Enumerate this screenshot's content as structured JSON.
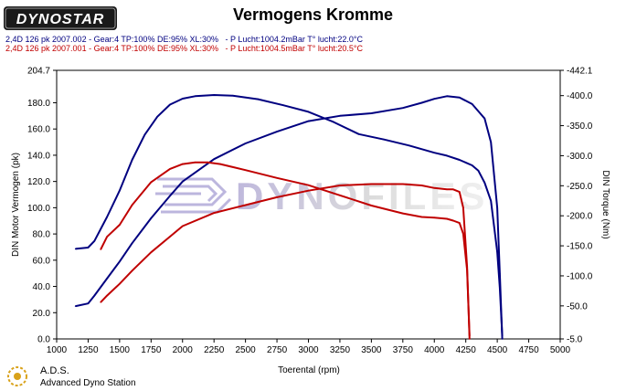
{
  "header": {
    "logo_text": "DYNOSTAR",
    "title": "Vermogens Kromme",
    "runs": [
      {
        "label": "2,4D 126 pk 2007.002 - Gear:4 TP:100% DE:95% XL:30%",
        "conditions": "- P Lucht:1004.2mBar T° lucht:22.0°C",
        "color": "#000080"
      },
      {
        "label": "2,4D 126 pk 2007.001 - Gear:4 TP:100% DE:95% XL:30%",
        "conditions": "- P Lucht:1004.5mBar T° lucht:20.5°C",
        "color": "#c00000"
      }
    ]
  },
  "watermark": "DYNOFILES",
  "footer": {
    "name": "A.D.S.",
    "subtitle": "Advanced Dyno Station"
  },
  "chart_data": {
    "type": "line",
    "xlabel": "Toerental (rpm)",
    "ylabel_left": "DIN Motor Vermogen (pk)",
    "ylabel_right": "DIN Torque (Nm)",
    "xlim": [
      1000,
      5000
    ],
    "ylim_left": [
      0,
      204.7
    ],
    "ylim_right": [
      -5,
      442.1
    ],
    "x_ticks": [
      "1000",
      "1250",
      "1500",
      "1750",
      "2000",
      "2250",
      "2500",
      "2750",
      "3000",
      "3250",
      "3500",
      "3750",
      "4000",
      "4250",
      "4500",
      "4750",
      "5000"
    ],
    "y_left_ticks": [
      "0.0",
      "20.0",
      "40.0",
      "60.0",
      "80.0",
      "100.0",
      "120.0",
      "140.0",
      "160.0",
      "180.0",
      "204.7"
    ],
    "y_right_ticks": [
      "-5.0",
      "-50.0",
      "-100.0",
      "-150.0",
      "-200.0",
      "-250.0",
      "-300.0",
      "-350.0",
      "-400.0",
      "-442.1"
    ],
    "grid": false,
    "series": [
      {
        "name": "2,4D 126 pk 2007.002",
        "quantity": "power",
        "axis": "left",
        "color": "#000080",
        "x": [
          1150,
          1250,
          1300,
          1400,
          1500,
          1600,
          1750,
          1900,
          2000,
          2250,
          2500,
          2750,
          3000,
          3250,
          3500,
          3750,
          3900,
          4000,
          4100,
          4200,
          4300,
          4400,
          4450,
          4500,
          4520,
          4540
        ],
        "y": [
          25,
          27,
          33,
          46,
          59,
          73,
          92,
          109,
          120,
          137,
          149,
          158,
          166,
          170,
          172,
          176,
          180,
          183,
          185,
          184,
          179,
          168,
          150,
          100,
          50,
          0
        ]
      },
      {
        "name": "2,4D 126 pk 2007.002",
        "quantity": "torque",
        "axis": "right",
        "color": "#000080",
        "x": [
          1150,
          1250,
          1300,
          1400,
          1500,
          1600,
          1700,
          1800,
          1900,
          2000,
          2100,
          2250,
          2400,
          2600,
          2800,
          3000,
          3200,
          3400,
          3600,
          3800,
          4000,
          4100,
          4200,
          4300,
          4350,
          4400,
          4450,
          4500,
          4520,
          4540
        ],
        "y": [
          145,
          147,
          158,
          198,
          242,
          293,
          335,
          365,
          385,
          395,
          399,
          401,
          400,
          394,
          384,
          373,
          356,
          336,
          327,
          317,
          305,
          300,
          293,
          284,
          275,
          255,
          225,
          140,
          80,
          0
        ]
      },
      {
        "name": "2,4D 126 pk 2007.001",
        "quantity": "power",
        "axis": "left",
        "color": "#c00000",
        "x": [
          1350,
          1400,
          1500,
          1600,
          1750,
          1900,
          2000,
          2250,
          2500,
          2750,
          3000,
          3250,
          3500,
          3750,
          3900,
          4000,
          4100,
          4150,
          4200,
          4230,
          4260,
          4280
        ],
        "y": [
          28,
          33,
          42,
          52,
          66,
          78,
          86,
          96,
          102,
          108,
          113,
          117,
          118,
          118,
          117,
          115,
          114,
          114,
          112,
          100,
          55,
          0
        ]
      },
      {
        "name": "2,4D 126 pk 2007.001",
        "quantity": "torque",
        "axis": "right",
        "color": "#c00000",
        "x": [
          1350,
          1400,
          1500,
          1600,
          1750,
          1900,
          2000,
          2100,
          2200,
          2300,
          2500,
          2750,
          3000,
          3250,
          3500,
          3750,
          3900,
          4000,
          4100,
          4150,
          4200,
          4230,
          4260,
          4280
        ],
        "y": [
          144,
          165,
          185,
          218,
          256,
          278,
          286,
          289,
          289,
          286,
          276,
          263,
          251,
          234,
          217,
          204,
          198,
          197,
          195,
          192,
          188,
          170,
          110,
          0
        ]
      }
    ]
  }
}
